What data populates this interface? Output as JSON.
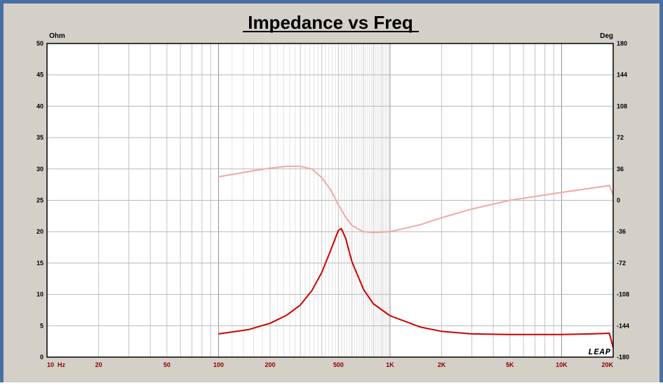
{
  "chart_data": {
    "type": "line",
    "title": "Impedance vs Freq",
    "y_unit_left": "Ohm",
    "y_unit_right": "Deg",
    "x_scale": "log",
    "xlim": [
      10,
      20000
    ],
    "ylim": [
      0,
      50
    ],
    "y2lim": [
      -180,
      180
    ],
    "grid": true,
    "x_tick_values": [
      10,
      20,
      50,
      100,
      200,
      500,
      1000,
      2000,
      5000,
      10000,
      20000
    ],
    "x_tick_labels": [
      "10  Hz",
      "20",
      "50",
      "100",
      "200",
      "500",
      "1K",
      "2K",
      "5K",
      "10K",
      "20K"
    ],
    "y_tick_labels": [
      "0",
      "5",
      "10",
      "15",
      "20",
      "25",
      "30",
      "35",
      "40",
      "45",
      "50"
    ],
    "y2_tick_labels": [
      "-180",
      "-144",
      "-108",
      "-72",
      "-36",
      "0",
      "36",
      "72",
      "108",
      "144",
      "180"
    ],
    "watermark": "LEAP",
    "series": [
      {
        "axis": "left",
        "color": "#cc0000",
        "x": [
          100,
          150,
          200,
          250,
          300,
          350,
          400,
          450,
          500,
          520,
          550,
          600,
          700,
          800,
          1000,
          1500,
          2000,
          3000,
          5000,
          10000,
          15000,
          19000,
          20000
        ],
        "values": [
          3.7,
          4.4,
          5.4,
          6.7,
          8.3,
          10.6,
          13.5,
          17.0,
          20.2,
          20.5,
          19.0,
          15.2,
          10.8,
          8.5,
          6.6,
          4.8,
          4.1,
          3.7,
          3.6,
          3.6,
          3.7,
          3.8,
          1.5
        ]
      },
      {
        "axis": "right",
        "color": "#f0a8a8",
        "x": [
          100,
          150,
          200,
          250,
          300,
          350,
          400,
          450,
          500,
          550,
          600,
          700,
          800,
          1000,
          1500,
          2000,
          3000,
          5000,
          10000,
          15000,
          19000,
          20000
        ],
        "values": [
          27,
          33,
          37,
          39,
          39,
          36,
          26,
          12,
          -5,
          -19,
          -29,
          -36,
          -37,
          -36,
          -28,
          -20,
          -10,
          0,
          9,
          14,
          17,
          6
        ]
      }
    ]
  }
}
